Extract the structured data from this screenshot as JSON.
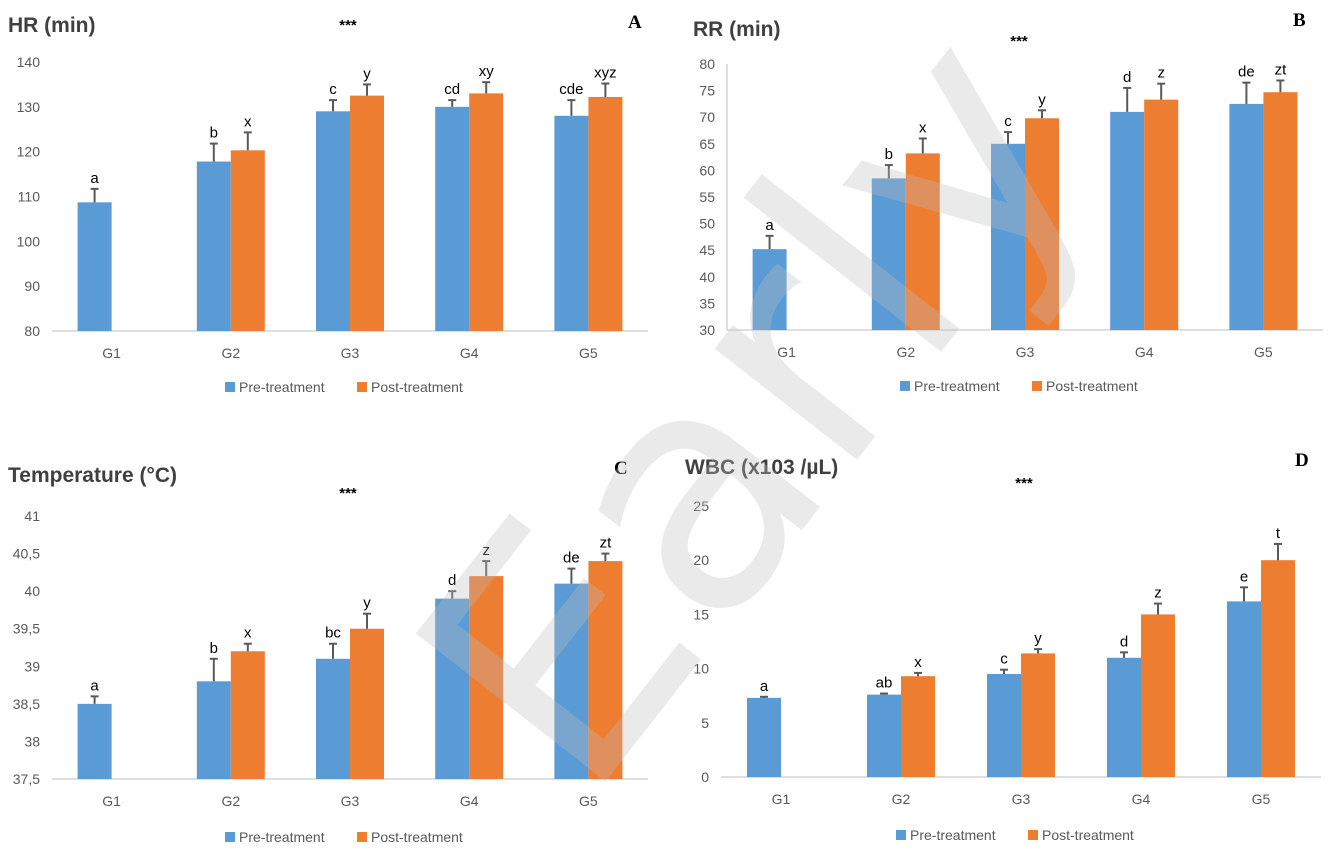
{
  "colors": {
    "pre": "#5b9bd5",
    "post": "#ed7d31",
    "axis": "#bfbfbf",
    "text": "#595959",
    "title": "#404040"
  },
  "watermark": "Early View",
  "chart_data": [
    {
      "type": "bar",
      "title": "HR (min)",
      "letter": "A",
      "significance": "***",
      "categories": [
        "G1",
        "G2",
        "G3",
        "G4",
        "G5"
      ],
      "ylim": [
        80,
        140
      ],
      "yticks": [
        80,
        90,
        100,
        110,
        120,
        130,
        140
      ],
      "ytick_labels": [
        "80",
        "90",
        "100",
        "110",
        "120",
        "130",
        "140"
      ],
      "series": [
        {
          "name": "Pre-treatment",
          "values": [
            108.7,
            117.8,
            129,
            130,
            128
          ],
          "errors": [
            3,
            4,
            2.5,
            1.5,
            3.5
          ],
          "labels": [
            "a",
            "b",
            "c",
            "cd",
            "cde"
          ]
        },
        {
          "name": "Post-treatment",
          "values": [
            null,
            120.3,
            132.5,
            133,
            132.2
          ],
          "errors": [
            null,
            4,
            2.5,
            2.5,
            3
          ],
          "labels": [
            "",
            "x",
            "y",
            "xy",
            "xyz"
          ]
        }
      ],
      "legend_position": "bottom"
    },
    {
      "type": "bar",
      "title": "RR (min)",
      "letter": "B",
      "significance": "***",
      "categories": [
        "G1",
        "G2",
        "G3",
        "G4",
        "G5"
      ],
      "ylim": [
        30,
        80
      ],
      "yticks": [
        30,
        35,
        40,
        45,
        50,
        55,
        60,
        65,
        70,
        75,
        80
      ],
      "ytick_labels": [
        "30",
        "35",
        "40",
        "45",
        "50",
        "55",
        "60",
        "65",
        "70",
        "75",
        "80"
      ],
      "series": [
        {
          "name": "Pre-treatment",
          "values": [
            45.2,
            58.5,
            65,
            71,
            72.5
          ],
          "errors": [
            2.5,
            2.5,
            2.2,
            4.5,
            4
          ],
          "labels": [
            "a",
            "b",
            "c",
            "d",
            "de"
          ]
        },
        {
          "name": "Post-treatment",
          "values": [
            null,
            63.2,
            69.8,
            73.3,
            74.7
          ],
          "errors": [
            null,
            2.8,
            1.5,
            3,
            2.2
          ],
          "labels": [
            "",
            "x",
            "y",
            "z",
            "zt"
          ]
        }
      ],
      "legend_position": "bottom"
    },
    {
      "type": "bar",
      "title": "Temperature (°C)",
      "letter": "C",
      "significance": "***",
      "categories": [
        "G1",
        "G2",
        "G3",
        "G4",
        "G5"
      ],
      "ylim": [
        37.5,
        41
      ],
      "yticks": [
        37.5,
        38,
        38.5,
        39,
        39.5,
        40,
        40.5,
        41
      ],
      "ytick_labels": [
        "37,5",
        "38",
        "38,5",
        "39",
        "39,5",
        "40",
        "40,5",
        "41"
      ],
      "series": [
        {
          "name": "Pre-treatment",
          "values": [
            38.5,
            38.8,
            39.1,
            39.9,
            40.1
          ],
          "errors": [
            0.1,
            0.3,
            0.2,
            0.1,
            0.2
          ],
          "labels": [
            "a",
            "b",
            "bc",
            "d",
            "de"
          ]
        },
        {
          "name": "Post-treatment",
          "values": [
            null,
            39.2,
            39.5,
            40.2,
            40.4
          ],
          "errors": [
            null,
            0.1,
            0.2,
            0.2,
            0.1
          ],
          "labels": [
            "",
            "x",
            "y",
            "z",
            "zt"
          ]
        }
      ],
      "legend_position": "bottom"
    },
    {
      "type": "bar",
      "title": "WBC (x103 /µL)",
      "letter": "D",
      "significance": "***",
      "categories": [
        "G1",
        "G2",
        "G3",
        "G4",
        "G5"
      ],
      "ylim": [
        0,
        25
      ],
      "yticks": [
        0,
        5,
        10,
        15,
        20,
        25
      ],
      "ytick_labels": [
        "0",
        "5",
        "10",
        "15",
        "20",
        "25"
      ],
      "series": [
        {
          "name": "Pre-treatment",
          "values": [
            7.3,
            7.6,
            9.5,
            11,
            16.2
          ],
          "errors": [
            0.1,
            0.1,
            0.4,
            0.5,
            1.3
          ],
          "labels": [
            "a",
            "ab",
            "c",
            "d",
            "e"
          ]
        },
        {
          "name": "Post-treatment",
          "values": [
            null,
            9.3,
            11.4,
            15,
            20
          ],
          "errors": [
            null,
            0.3,
            0.4,
            1,
            1.5
          ],
          "labels": [
            "",
            "x",
            "y",
            "z",
            "t"
          ]
        }
      ],
      "legend_position": "bottom"
    }
  ]
}
